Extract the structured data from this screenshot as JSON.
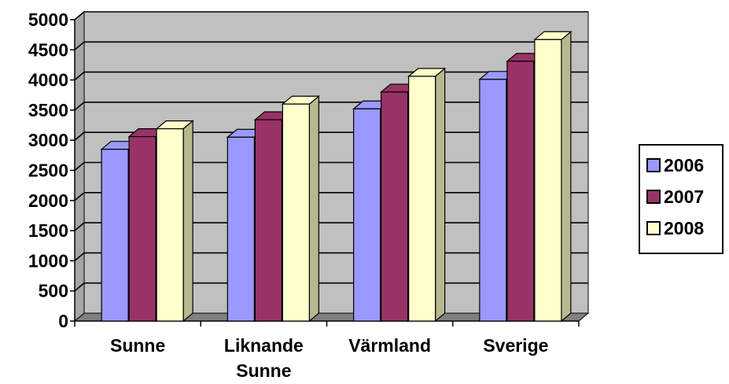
{
  "chart_data": {
    "type": "bar",
    "style": "3d-clustered-column",
    "title": "",
    "xlabel": "",
    "ylabel": "",
    "categories": [
      [
        "Sunne"
      ],
      [
        "Liknande",
        "Sunne"
      ],
      [
        "Värmland"
      ],
      [
        "Sverige"
      ]
    ],
    "series": [
      {
        "name": "2006",
        "color": "#9999ff",
        "side": "#6666cc",
        "values": [
          2850,
          3050,
          3520,
          4010
        ]
      },
      {
        "name": "2007",
        "color": "#993366",
        "side": "#6e2449",
        "values": [
          3060,
          3340,
          3800,
          4310
        ]
      },
      {
        "name": "2008",
        "color": "#ffffcc",
        "side": "#b8b88e",
        "values": [
          3190,
          3600,
          4060,
          4670
        ]
      }
    ],
    "ylim": [
      0,
      5000
    ],
    "yticks": [
      0,
      500,
      1000,
      1500,
      2000,
      2500,
      3000,
      3500,
      4000,
      4500,
      5000
    ],
    "grid": true,
    "plot_background": "#c0c0c0",
    "legend": {
      "position": "right"
    }
  }
}
